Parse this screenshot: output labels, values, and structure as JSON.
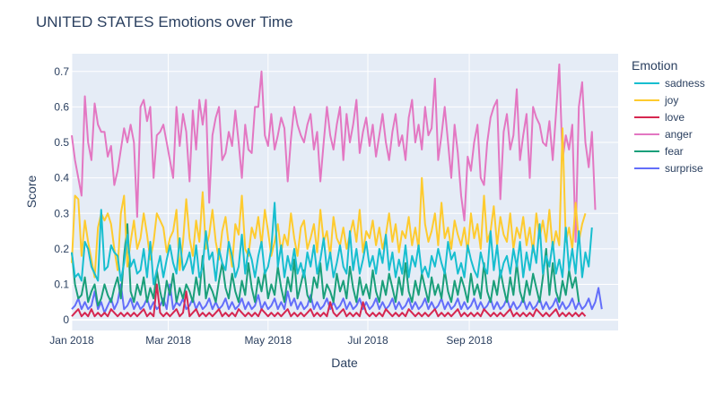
{
  "chart_data": {
    "type": "line",
    "title": "UNITED STATES Emotions over Time",
    "xlabel": "Date",
    "ylabel": "Score",
    "legend_title": "Emotion",
    "legend_position": "right",
    "grid": true,
    "colors": {
      "background": "#e5ecf6",
      "grid": "#ffffff",
      "text": "#2a3f5f"
    },
    "xlim": [
      "2018-01-01",
      "2018-12-01"
    ],
    "ylim": [
      -0.03,
      0.75
    ],
    "x_ticks": [
      {
        "date": "2018-01-01",
        "label": "Jan 2018"
      },
      {
        "date": "2018-03-01",
        "label": "Mar 2018"
      },
      {
        "date": "2018-05-01",
        "label": "May 2018"
      },
      {
        "date": "2018-07-01",
        "label": "Jul 2018"
      },
      {
        "date": "2018-09-01",
        "label": "Sep 2018"
      }
    ],
    "y_ticks": [
      {
        "value": 0,
        "label": "0"
      },
      {
        "value": 0.1,
        "label": "0.1"
      },
      {
        "value": 0.2,
        "label": "0.2"
      },
      {
        "value": 0.3,
        "label": "0.3"
      },
      {
        "value": 0.4,
        "label": "0.4"
      },
      {
        "value": 0.5,
        "label": "0.5"
      },
      {
        "value": 0.6,
        "label": "0.6"
      },
      {
        "value": 0.7,
        "label": "0.7"
      }
    ],
    "x_start": "2018-01-01",
    "x_step_days": 2,
    "series": [
      {
        "name": "sadness",
        "color": "#17becf",
        "values": [
          0.19,
          0.12,
          0.13,
          0.11,
          0.22,
          0.2,
          0.15,
          0.13,
          0.11,
          0.31,
          0.14,
          0.15,
          0.21,
          0.19,
          0.18,
          0.11,
          0.16,
          0.24,
          0.15,
          0.17,
          0.13,
          0.14,
          0.2,
          0.12,
          0.22,
          0.1,
          0.14,
          0.18,
          0.12,
          0.17,
          0.21,
          0.16,
          0.13,
          0.23,
          0.14,
          0.16,
          0.19,
          0.13,
          0.21,
          0.12,
          0.15,
          0.25,
          0.17,
          0.19,
          0.11,
          0.2,
          0.16,
          0.14,
          0.22,
          0.18,
          0.12,
          0.15,
          0.24,
          0.13,
          0.2,
          0.17,
          0.12,
          0.18,
          0.22,
          0.13,
          0.15,
          0.2,
          0.33,
          0.15,
          0.21,
          0.12,
          0.18,
          0.14,
          0.2,
          0.13,
          0.16,
          0.12,
          0.19,
          0.15,
          0.21,
          0.13,
          0.17,
          0.23,
          0.14,
          0.19,
          0.12,
          0.16,
          0.21,
          0.15,
          0.13,
          0.25,
          0.14,
          0.2,
          0.13,
          0.17,
          0.22,
          0.15,
          0.18,
          0.13,
          0.2,
          0.16,
          0.24,
          0.14,
          0.19,
          0.12,
          0.17,
          0.13,
          0.21,
          0.12,
          0.18,
          0.15,
          0.21,
          0.13,
          0.15,
          0.12,
          0.18,
          0.15,
          0.2,
          0.16,
          0.13,
          0.22,
          0.17,
          0.19,
          0.13,
          0.16,
          0.12,
          0.21,
          0.17,
          0.14,
          0.12,
          0.19,
          0.15,
          0.13,
          0.25,
          0.14,
          0.21,
          0.12,
          0.16,
          0.18,
          0.13,
          0.2,
          0.15,
          0.22,
          0.12,
          0.19,
          0.14,
          0.21,
          0.16,
          0.27,
          0.13,
          0.18,
          0.15,
          0.22,
          0.13,
          0.17,
          0.12,
          0.26,
          0.14,
          0.2,
          0.13,
          0.25,
          0.12,
          0.19,
          0.15,
          0.26
        ]
      },
      {
        "name": "joy",
        "color": "#fecb2e",
        "values": [
          0.16,
          0.35,
          0.34,
          0.18,
          0.28,
          0.22,
          0.17,
          0.12,
          0.26,
          0.3,
          0.28,
          0.3,
          0.27,
          0.2,
          0.14,
          0.3,
          0.35,
          0.15,
          0.22,
          0.28,
          0.2,
          0.23,
          0.3,
          0.24,
          0.17,
          0.22,
          0.3,
          0.28,
          0.26,
          0.19,
          0.23,
          0.25,
          0.31,
          0.14,
          0.22,
          0.34,
          0.23,
          0.18,
          0.28,
          0.22,
          0.36,
          0.2,
          0.24,
          0.31,
          0.22,
          0.17,
          0.25,
          0.29,
          0.21,
          0.15,
          0.27,
          0.24,
          0.35,
          0.2,
          0.18,
          0.26,
          0.23,
          0.29,
          0.21,
          0.31,
          0.25,
          0.18,
          0.22,
          0.27,
          0.19,
          0.24,
          0.21,
          0.3,
          0.23,
          0.18,
          0.26,
          0.28,
          0.2,
          0.23,
          0.27,
          0.19,
          0.31,
          0.22,
          0.25,
          0.18,
          0.29,
          0.23,
          0.21,
          0.26,
          0.2,
          0.24,
          0.28,
          0.22,
          0.31,
          0.19,
          0.25,
          0.23,
          0.28,
          0.21,
          0.26,
          0.2,
          0.24,
          0.3,
          0.22,
          0.27,
          0.19,
          0.25,
          0.23,
          0.29,
          0.21,
          0.26,
          0.2,
          0.4,
          0.27,
          0.22,
          0.25,
          0.3,
          0.21,
          0.33,
          0.23,
          0.26,
          0.2,
          0.28,
          0.24,
          0.21,
          0.26,
          0.19,
          0.3,
          0.23,
          0.27,
          0.2,
          0.35,
          0.22,
          0.25,
          0.32,
          0.21,
          0.29,
          0.24,
          0.22,
          0.3,
          0.2,
          0.26,
          0.23,
          0.29,
          0.21,
          0.26,
          0.19,
          0.3,
          0.23,
          0.28,
          0.22,
          0.31,
          0.2,
          0.25,
          0.21,
          0.54,
          0.22,
          0.26,
          0.2,
          0.33,
          0.22,
          0.27,
          0.3
        ]
      },
      {
        "name": "love",
        "color": "#d62750",
        "values": [
          0.01,
          0.02,
          0.03,
          0.01,
          0.02,
          0.01,
          0.03,
          0.01,
          0.02,
          0.01,
          0.02,
          0.01,
          0.03,
          0.02,
          0.01,
          0.02,
          0.01,
          0.02,
          0.01,
          0.02,
          0.01,
          0.02,
          0.03,
          0.01,
          0.02,
          0.01,
          0.1,
          0.02,
          0.01,
          0.02,
          0.01,
          0.02,
          0.03,
          0.01,
          0.02,
          0.08,
          0.01,
          0.02,
          0.03,
          0.01,
          0.02,
          0.01,
          0.02,
          0.01,
          0.02,
          0.03,
          0.01,
          0.02,
          0.01,
          0.02,
          0.01,
          0.03,
          0.02,
          0.01,
          0.02,
          0.01,
          0.02,
          0.01,
          0.03,
          0.02,
          0.01,
          0.02,
          0.01,
          0.02,
          0.01,
          0.02,
          0.03,
          0.01,
          0.02,
          0.01,
          0.02,
          0.01,
          0.02,
          0.03,
          0.01,
          0.02,
          0.01,
          0.02,
          0.01,
          0.05,
          0.02,
          0.01,
          0.02,
          0.03,
          0.01,
          0.02,
          0.01,
          0.02,
          0.01,
          0.05,
          0.02,
          0.01,
          0.02,
          0.01,
          0.02,
          0.01,
          0.03,
          0.02,
          0.01,
          0.02,
          0.01,
          0.02,
          0.01,
          0.03,
          0.02,
          0.01,
          0.02,
          0.01,
          0.02,
          0.01,
          0.02,
          0.03,
          0.01,
          0.02,
          0.01,
          0.02,
          0.01,
          0.02,
          0.03,
          0.01,
          0.02,
          0.01,
          0.02,
          0.01,
          0.02,
          0.01,
          0.03,
          0.02,
          0.01,
          0.02,
          0.01,
          0.02,
          0.01,
          0.02,
          0.03,
          0.01,
          0.02,
          0.01,
          0.02,
          0.01,
          0.02,
          0.01,
          0.03,
          0.02,
          0.01,
          0.02,
          0.01,
          0.02,
          0.03,
          0.01,
          0.02,
          0.01,
          0.02,
          0.01,
          0.02,
          0.01,
          0.02,
          0.01
        ]
      },
      {
        "name": "anger",
        "color": "#e377c2",
        "values": [
          0.52,
          0.45,
          0.4,
          0.35,
          0.63,
          0.5,
          0.45,
          0.61,
          0.55,
          0.53,
          0.53,
          0.46,
          0.49,
          0.38,
          0.42,
          0.48,
          0.54,
          0.5,
          0.55,
          0.5,
          0.29,
          0.6,
          0.62,
          0.56,
          0.6,
          0.4,
          0.52,
          0.53,
          0.55,
          0.5,
          0.45,
          0.4,
          0.6,
          0.49,
          0.58,
          0.53,
          0.39,
          0.59,
          0.48,
          0.62,
          0.55,
          0.62,
          0.33,
          0.52,
          0.57,
          0.6,
          0.45,
          0.47,
          0.53,
          0.49,
          0.59,
          0.5,
          0.4,
          0.55,
          0.48,
          0.47,
          0.6,
          0.6,
          0.7,
          0.52,
          0.49,
          0.58,
          0.48,
          0.52,
          0.57,
          0.54,
          0.39,
          0.51,
          0.6,
          0.55,
          0.52,
          0.5,
          0.55,
          0.58,
          0.48,
          0.53,
          0.39,
          0.5,
          0.6,
          0.52,
          0.48,
          0.55,
          0.6,
          0.45,
          0.58,
          0.5,
          0.55,
          0.62,
          0.47,
          0.53,
          0.57,
          0.49,
          0.55,
          0.46,
          0.52,
          0.58,
          0.5,
          0.45,
          0.53,
          0.58,
          0.49,
          0.52,
          0.45,
          0.57,
          0.62,
          0.5,
          0.55,
          0.48,
          0.6,
          0.52,
          0.54,
          0.68,
          0.45,
          0.52,
          0.6,
          0.5,
          0.4,
          0.55,
          0.47,
          0.35,
          0.28,
          0.46,
          0.42,
          0.5,
          0.55,
          0.4,
          0.38,
          0.5,
          0.57,
          0.6,
          0.62,
          0.34,
          0.53,
          0.58,
          0.48,
          0.52,
          0.65,
          0.45,
          0.52,
          0.58,
          0.4,
          0.6,
          0.57,
          0.55,
          0.5,
          0.49,
          0.56,
          0.45,
          0.58,
          0.72,
          0.45,
          0.52,
          0.48,
          0.55,
          0.22,
          0.6,
          0.67,
          0.5,
          0.43,
          0.53,
          0.31
        ]
      },
      {
        "name": "fear",
        "color": "#1a9f7a",
        "values": [
          0.19,
          0.1,
          0.06,
          0.07,
          0.12,
          0.05,
          0.08,
          0.1,
          0.04,
          0.06,
          0.1,
          0.07,
          0.05,
          0.09,
          0.12,
          0.06,
          0.18,
          0.27,
          0.08,
          0.05,
          0.1,
          0.07,
          0.12,
          0.05,
          0.09,
          0.06,
          0.14,
          0.08,
          0.04,
          0.11,
          0.07,
          0.13,
          0.05,
          0.09,
          0.06,
          0.1,
          0.08,
          0.05,
          0.12,
          0.07,
          0.18,
          0.06,
          0.1,
          0.08,
          0.05,
          0.11,
          0.16,
          0.09,
          0.06,
          0.13,
          0.08,
          0.05,
          0.11,
          0.07,
          0.16,
          0.09,
          0.05,
          0.12,
          0.08,
          0.14,
          0.06,
          0.1,
          0.07,
          0.15,
          0.09,
          0.05,
          0.12,
          0.08,
          0.17,
          0.06,
          0.1,
          0.14,
          0.07,
          0.05,
          0.12,
          0.09,
          0.16,
          0.06,
          0.1,
          0.08,
          0.05,
          0.13,
          0.08,
          0.11,
          0.06,
          0.15,
          0.09,
          0.05,
          0.12,
          0.07,
          0.1,
          0.06,
          0.14,
          0.08,
          0.05,
          0.11,
          0.07,
          0.13,
          0.09,
          0.05,
          0.12,
          0.07,
          0.16,
          0.08,
          0.05,
          0.11,
          0.07,
          0.13,
          0.09,
          0.05,
          0.12,
          0.07,
          0.1,
          0.06,
          0.14,
          0.08,
          0.05,
          0.11,
          0.07,
          0.12,
          0.09,
          0.05,
          0.13,
          0.07,
          0.1,
          0.06,
          0.16,
          0.08,
          0.05,
          0.11,
          0.07,
          0.14,
          0.09,
          0.05,
          0.12,
          0.07,
          0.16,
          0.08,
          0.05,
          0.11,
          0.07,
          0.13,
          0.09,
          0.05,
          0.12,
          0.2,
          0.07,
          0.16,
          0.08,
          0.05,
          0.11,
          0.07,
          0.14,
          0.09,
          0.12,
          0.05
        ]
      },
      {
        "name": "surprise",
        "color": "#636efa",
        "values": [
          0.03,
          0.04,
          0.06,
          0.03,
          0.05,
          0.03,
          0.04,
          0.08,
          0.03,
          0.05,
          0.02,
          0.04,
          0.06,
          0.03,
          0.05,
          0.1,
          0.03,
          0.04,
          0.06,
          0.03,
          0.05,
          0.03,
          0.04,
          0.06,
          0.03,
          0.05,
          0.03,
          0.04,
          0.06,
          0.03,
          0.1,
          0.03,
          0.05,
          0.04,
          0.06,
          0.03,
          0.04,
          0.06,
          0.03,
          0.05,
          0.03,
          0.04,
          0.06,
          0.03,
          0.05,
          0.03,
          0.04,
          0.06,
          0.03,
          0.05,
          0.03,
          0.04,
          0.06,
          0.03,
          0.05,
          0.03,
          0.04,
          0.07,
          0.03,
          0.05,
          0.03,
          0.04,
          0.06,
          0.03,
          0.05,
          0.03,
          0.08,
          0.04,
          0.06,
          0.03,
          0.05,
          0.03,
          0.04,
          0.07,
          0.03,
          0.05,
          0.03,
          0.04,
          0.06,
          0.03,
          0.05,
          0.03,
          0.04,
          0.06,
          0.03,
          0.05,
          0.03,
          0.04,
          0.06,
          0.03,
          0.05,
          0.03,
          0.04,
          0.06,
          0.03,
          0.05,
          0.03,
          0.04,
          0.06,
          0.03,
          0.05,
          0.03,
          0.04,
          0.06,
          0.03,
          0.05,
          0.03,
          0.04,
          0.06,
          0.03,
          0.05,
          0.03,
          0.04,
          0.06,
          0.03,
          0.05,
          0.03,
          0.04,
          0.06,
          0.03,
          0.05,
          0.03,
          0.04,
          0.06,
          0.03,
          0.05,
          0.03,
          0.04,
          0.06,
          0.03,
          0.05,
          0.03,
          0.04,
          0.06,
          0.03,
          0.05,
          0.03,
          0.04,
          0.06,
          0.03,
          0.05,
          0.03,
          0.04,
          0.06,
          0.03,
          0.05,
          0.03,
          0.04,
          0.06,
          0.03,
          0.05,
          0.03,
          0.04,
          0.06,
          0.03,
          0.05,
          0.03,
          0.04,
          0.06,
          0.03,
          0.05,
          0.09,
          0.03
        ]
      }
    ]
  }
}
